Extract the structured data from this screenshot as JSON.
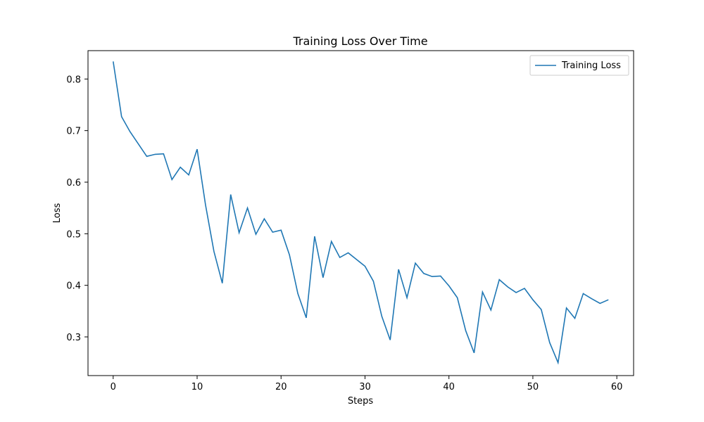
{
  "chart_data": {
    "type": "line",
    "title": "Training Loss Over Time",
    "xlabel": "Steps",
    "ylabel": "Loss",
    "xlim": [
      -3,
      62
    ],
    "ylim": [
      0.225,
      0.855
    ],
    "x_ticks": [
      0,
      10,
      20,
      30,
      40,
      50,
      60
    ],
    "y_ticks": [
      0.3,
      0.4,
      0.5,
      0.6,
      0.7,
      0.8
    ],
    "y_tick_labels": [
      "0.3",
      "0.4",
      "0.5",
      "0.6",
      "0.7",
      "0.8"
    ],
    "grid": false,
    "legend": {
      "position": "top-right",
      "entries": [
        "Training Loss"
      ]
    },
    "series": [
      {
        "name": "Training Loss",
        "color": "#1f77b4",
        "x": [
          0,
          1,
          2,
          3,
          4,
          5,
          6,
          7,
          8,
          9,
          10,
          11,
          12,
          13,
          14,
          15,
          16,
          17,
          18,
          19,
          20,
          21,
          22,
          23,
          24,
          25,
          26,
          27,
          28,
          29,
          30,
          31,
          32,
          33,
          34,
          35,
          36,
          37,
          38,
          39,
          40,
          41,
          42,
          43,
          44,
          45,
          46,
          47,
          48,
          49,
          50,
          51,
          52,
          53,
          54,
          55,
          56,
          57,
          58,
          59
        ],
        "values": [
          0.834,
          0.727,
          0.698,
          0.674,
          0.65,
          0.654,
          0.655,
          0.605,
          0.629,
          0.614,
          0.664,
          0.556,
          0.466,
          0.404,
          0.576,
          0.502,
          0.55,
          0.499,
          0.529,
          0.503,
          0.507,
          0.459,
          0.384,
          0.337,
          0.495,
          0.415,
          0.485,
          0.454,
          0.463,
          0.45,
          0.437,
          0.408,
          0.34,
          0.294,
          0.431,
          0.376,
          0.443,
          0.423,
          0.417,
          0.418,
          0.399,
          0.376,
          0.312,
          0.269,
          0.387,
          0.352,
          0.411,
          0.397,
          0.386,
          0.394,
          0.372,
          0.353,
          0.289,
          0.25,
          0.356,
          0.336,
          0.384,
          0.374,
          0.365,
          0.372
        ]
      }
    ]
  }
}
